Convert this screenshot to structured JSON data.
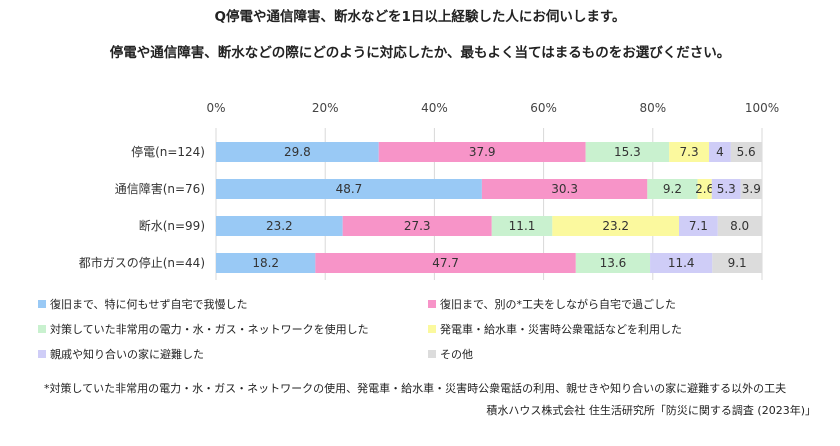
{
  "title_line1": "Q停電や通信障害、断水などを1日以上経験した人にお伺いします。",
  "title_line2": "停電や通信障害、断水などの際にどのように対応したか、最もよく当てはまるものをお選びください。",
  "footnote": "*対策していた非常用の電力・水・ガス・ネットワークの使用、発電車・給水車・災害時公衆電話の利用、親せきや知り合いの家に避難する以外の工夫",
  "source": "積水ハウス株式会社 住生活研究所「防災に関する調査 (2023年)」",
  "chart_data": {
    "type": "bar",
    "orientation": "horizontal",
    "stacked": true,
    "percent_stacked": true,
    "categories": [
      "停電(n=124)",
      "通信障害(n=76)",
      "断水(n=99)",
      "都市ガスの停止(n=44)"
    ],
    "x_ticks": [
      "0%",
      "20%",
      "40%",
      "60%",
      "80%",
      "100%"
    ],
    "xlim": [
      0,
      100
    ],
    "grid": true,
    "legend_position": "bottom",
    "series": [
      {
        "name": "復旧まで、特に何もせず自宅で我慢した",
        "color": "#99c9f5",
        "values": [
          29.8,
          48.7,
          23.2,
          18.2
        ]
      },
      {
        "name": "復旧まで、別の*工夫をしながら自宅で過ごした",
        "color": "#f794c8",
        "values": [
          37.9,
          30.3,
          27.3,
          47.7
        ]
      },
      {
        "name": "対策していた非常用の電力・水・ガス・ネットワークを使用した",
        "color": "#c9f1cf",
        "values": [
          15.3,
          9.2,
          11.1,
          13.6
        ]
      },
      {
        "name": "発電車・給水車・災害時公衆電話などを利用した",
        "color": "#fbf99e",
        "values": [
          7.3,
          2.6,
          23.2,
          0
        ]
      },
      {
        "name": "親戚や知り合いの家に避難した",
        "color": "#cfcdf7",
        "values": [
          4,
          5.3,
          7.1,
          11.4
        ]
      },
      {
        "name": "その他",
        "color": "#dcdcdc",
        "values": [
          5.6,
          3.9,
          8.0,
          9.1
        ]
      }
    ],
    "data_labels": [
      [
        "29.8",
        "37.9",
        "15.3",
        "7.3",
        "4",
        "5.6"
      ],
      [
        "48.7",
        "30.3",
        "9.2",
        "2.6",
        "5.3",
        "3.9"
      ],
      [
        "23.2",
        "27.3",
        "11.1",
        "23.2",
        "7.1",
        "8.0"
      ],
      [
        "18.2",
        "47.7",
        "13.6",
        "",
        "11.4",
        "9.1"
      ]
    ]
  }
}
